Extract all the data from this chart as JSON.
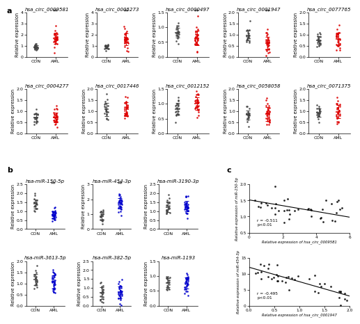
{
  "panel_a_circs": [
    {
      "title": "hsa_circ_0009581",
      "con_mean": 0.9,
      "con_sd": 0.15,
      "aml_mean": 1.65,
      "aml_sd": 0.55,
      "ylim": [
        0,
        4.0
      ],
      "yticks": [
        0,
        1,
        2,
        3,
        4
      ],
      "con_color": "#444444",
      "aml_color": "#dd0000",
      "sig": "**"
    },
    {
      "title": "hsa_circ_0005273",
      "con_mean": 0.9,
      "con_sd": 0.15,
      "aml_mean": 1.75,
      "aml_sd": 0.65,
      "ylim": [
        0,
        4.0
      ],
      "yticks": [
        0,
        1,
        2,
        3,
        4
      ],
      "con_color": "#444444",
      "aml_color": "#dd0000",
      "sig": "**"
    },
    {
      "title": "hsa_circ_0000497",
      "con_mean": 0.72,
      "con_sd": 0.22,
      "aml_mean": 0.65,
      "aml_sd": 0.22,
      "ylim": [
        0.0,
        1.5
      ],
      "yticks": [
        0.0,
        0.5,
        1.0,
        1.5
      ],
      "con_color": "#444444",
      "aml_color": "#dd0000",
      "sig": "**"
    },
    {
      "title": "hsa_circ_0001947",
      "con_mean": 1.05,
      "con_sd": 0.22,
      "aml_mean": 0.65,
      "aml_sd": 0.22,
      "ylim": [
        0.0,
        2.0
      ],
      "yticks": [
        0.0,
        0.5,
        1.0,
        1.5,
        2.0
      ],
      "con_color": "#444444",
      "aml_color": "#dd0000",
      "sig": "**"
    },
    {
      "title": "hsa_circ_0077765",
      "con_mean": 0.8,
      "con_sd": 0.2,
      "aml_mean": 0.78,
      "aml_sd": 0.22,
      "ylim": [
        0.0,
        2.0
      ],
      "yticks": [
        0.0,
        0.5,
        1.0,
        1.5,
        2.0
      ],
      "con_color": "#444444",
      "aml_color": "#dd0000",
      "sig": null
    },
    {
      "title": "hsa_circ_0004277",
      "con_mean": 0.7,
      "con_sd": 0.18,
      "aml_mean": 0.7,
      "aml_sd": 0.22,
      "ylim": [
        0.0,
        2.0
      ],
      "yticks": [
        0.0,
        0.5,
        1.0,
        1.5,
        2.0
      ],
      "con_color": "#444444",
      "aml_color": "#dd0000",
      "sig": null
    },
    {
      "title": "hsa_circ_0017446",
      "con_mean": 1.05,
      "con_sd": 0.28,
      "aml_mean": 1.05,
      "aml_sd": 0.32,
      "ylim": [
        0.0,
        2.0
      ],
      "yticks": [
        0.0,
        0.5,
        1.0,
        1.5,
        2.0
      ],
      "con_color": "#444444",
      "aml_color": "#dd0000",
      "sig": null
    },
    {
      "title": "hsa_circ_0012152",
      "con_mean": 0.9,
      "con_sd": 0.18,
      "aml_mean": 1.0,
      "aml_sd": 0.22,
      "ylim": [
        0.0,
        1.5
      ],
      "yticks": [
        0.0,
        0.5,
        1.0,
        1.5
      ],
      "con_color": "#444444",
      "aml_color": "#dd0000",
      "sig": null
    },
    {
      "title": "hsa_circ_0058058",
      "con_mean": 0.88,
      "con_sd": 0.2,
      "aml_mean": 0.95,
      "aml_sd": 0.28,
      "ylim": [
        0.0,
        2.0
      ],
      "yticks": [
        0.0,
        0.5,
        1.0,
        1.5,
        2.0
      ],
      "con_color": "#444444",
      "aml_color": "#dd0000",
      "sig": null
    },
    {
      "title": "hsa_circ_0071375",
      "con_mean": 1.02,
      "con_sd": 0.2,
      "aml_mean": 1.0,
      "aml_sd": 0.28,
      "ylim": [
        0.0,
        2.0
      ],
      "yticks": [
        0.0,
        0.5,
        1.0,
        1.5,
        2.0
      ],
      "con_color": "#444444",
      "aml_color": "#dd0000",
      "sig": null
    }
  ],
  "panel_b_mirnas": [
    {
      "title": "hsa-miR-150-5p",
      "con_mean": 1.25,
      "con_sd": 0.3,
      "aml_mean": 0.85,
      "aml_sd": 0.18,
      "ylim": [
        0.0,
        2.5
      ],
      "yticks": [
        0.0,
        0.5,
        1.0,
        1.5,
        2.0,
        2.5
      ],
      "con_color": "#444444",
      "aml_color": "#0000cc",
      "sig": "**"
    },
    {
      "title": "hsa-miR-454-3p",
      "con_mean": 0.9,
      "con_sd": 0.22,
      "aml_mean": 1.7,
      "aml_sd": 0.38,
      "ylim": [
        0.0,
        3.0
      ],
      "yticks": [
        0,
        1,
        2,
        3
      ],
      "con_color": "#444444",
      "aml_color": "#0000cc",
      "sig": "**"
    },
    {
      "title": "hsa-miR-3190-3p",
      "con_mean": 1.22,
      "con_sd": 0.28,
      "aml_mean": 1.28,
      "aml_sd": 0.32,
      "ylim": [
        0.0,
        2.5
      ],
      "yticks": [
        0.0,
        0.5,
        1.0,
        1.5,
        2.0,
        2.5
      ],
      "con_color": "#444444",
      "aml_color": "#0000cc",
      "sig": null
    },
    {
      "title": "hsa-miR-3613-5p",
      "con_mean": 1.1,
      "con_sd": 0.22,
      "aml_mean": 1.05,
      "aml_sd": 0.27,
      "ylim": [
        0.0,
        2.0
      ],
      "yticks": [
        0.0,
        0.5,
        1.0,
        1.5,
        2.0
      ],
      "con_color": "#444444",
      "aml_color": "#0000cc",
      "sig": null
    },
    {
      "title": "hsa-miR-382-5p",
      "con_mean": 0.72,
      "con_sd": 0.3,
      "aml_mean": 0.88,
      "aml_sd": 0.35,
      "ylim": [
        0.0,
        2.5
      ],
      "yticks": [
        0.0,
        0.5,
        1.0,
        1.5,
        2.0,
        2.5
      ],
      "con_color": "#444444",
      "aml_color": "#0000cc",
      "sig": null
    },
    {
      "title": "hsa-miR-1193",
      "con_mean": 0.72,
      "con_sd": 0.15,
      "aml_mean": 0.75,
      "aml_sd": 0.18,
      "ylim": [
        0.0,
        1.5
      ],
      "yticks": [
        0.0,
        0.5,
        1.0,
        1.5
      ],
      "con_color": "#444444",
      "aml_color": "#0000cc",
      "sig": null
    }
  ],
  "panel_c_plots": [
    {
      "xlabel": "Relative expression of hsa_circ_0009581",
      "ylabel": "Relative expression of miR-150-5p",
      "xlim": [
        0,
        6
      ],
      "ylim": [
        0.5,
        2.0
      ],
      "xticks": [
        0,
        2,
        4,
        6
      ],
      "yticks": [
        0.5,
        1.0,
        1.5,
        2.0
      ],
      "r": -0.511,
      "p_label": "p<0.01",
      "slope": -0.09,
      "intercept": 1.52,
      "noise_scale": 0.22
    },
    {
      "xlabel": "Relative expression of hsa_circ_0001947",
      "ylabel": "Relative expression of miR-454-3p",
      "xlim": [
        0.0,
        2.0
      ],
      "ylim": [
        0,
        15
      ],
      "xticks": [
        0.0,
        0.5,
        1.0,
        1.5,
        2.0
      ],
      "yticks": [
        0,
        5,
        10,
        15
      ],
      "r": -0.495,
      "p_label": "p<0.01",
      "slope": -4.5,
      "intercept": 12.0,
      "noise_scale": 1.8
    }
  ],
  "n_con": 20,
  "n_aml": 30,
  "seed": 42,
  "label_fontsize": 5.0,
  "tick_fontsize": 4.5,
  "title_fontsize": 5.0,
  "marker_size": 3.5
}
